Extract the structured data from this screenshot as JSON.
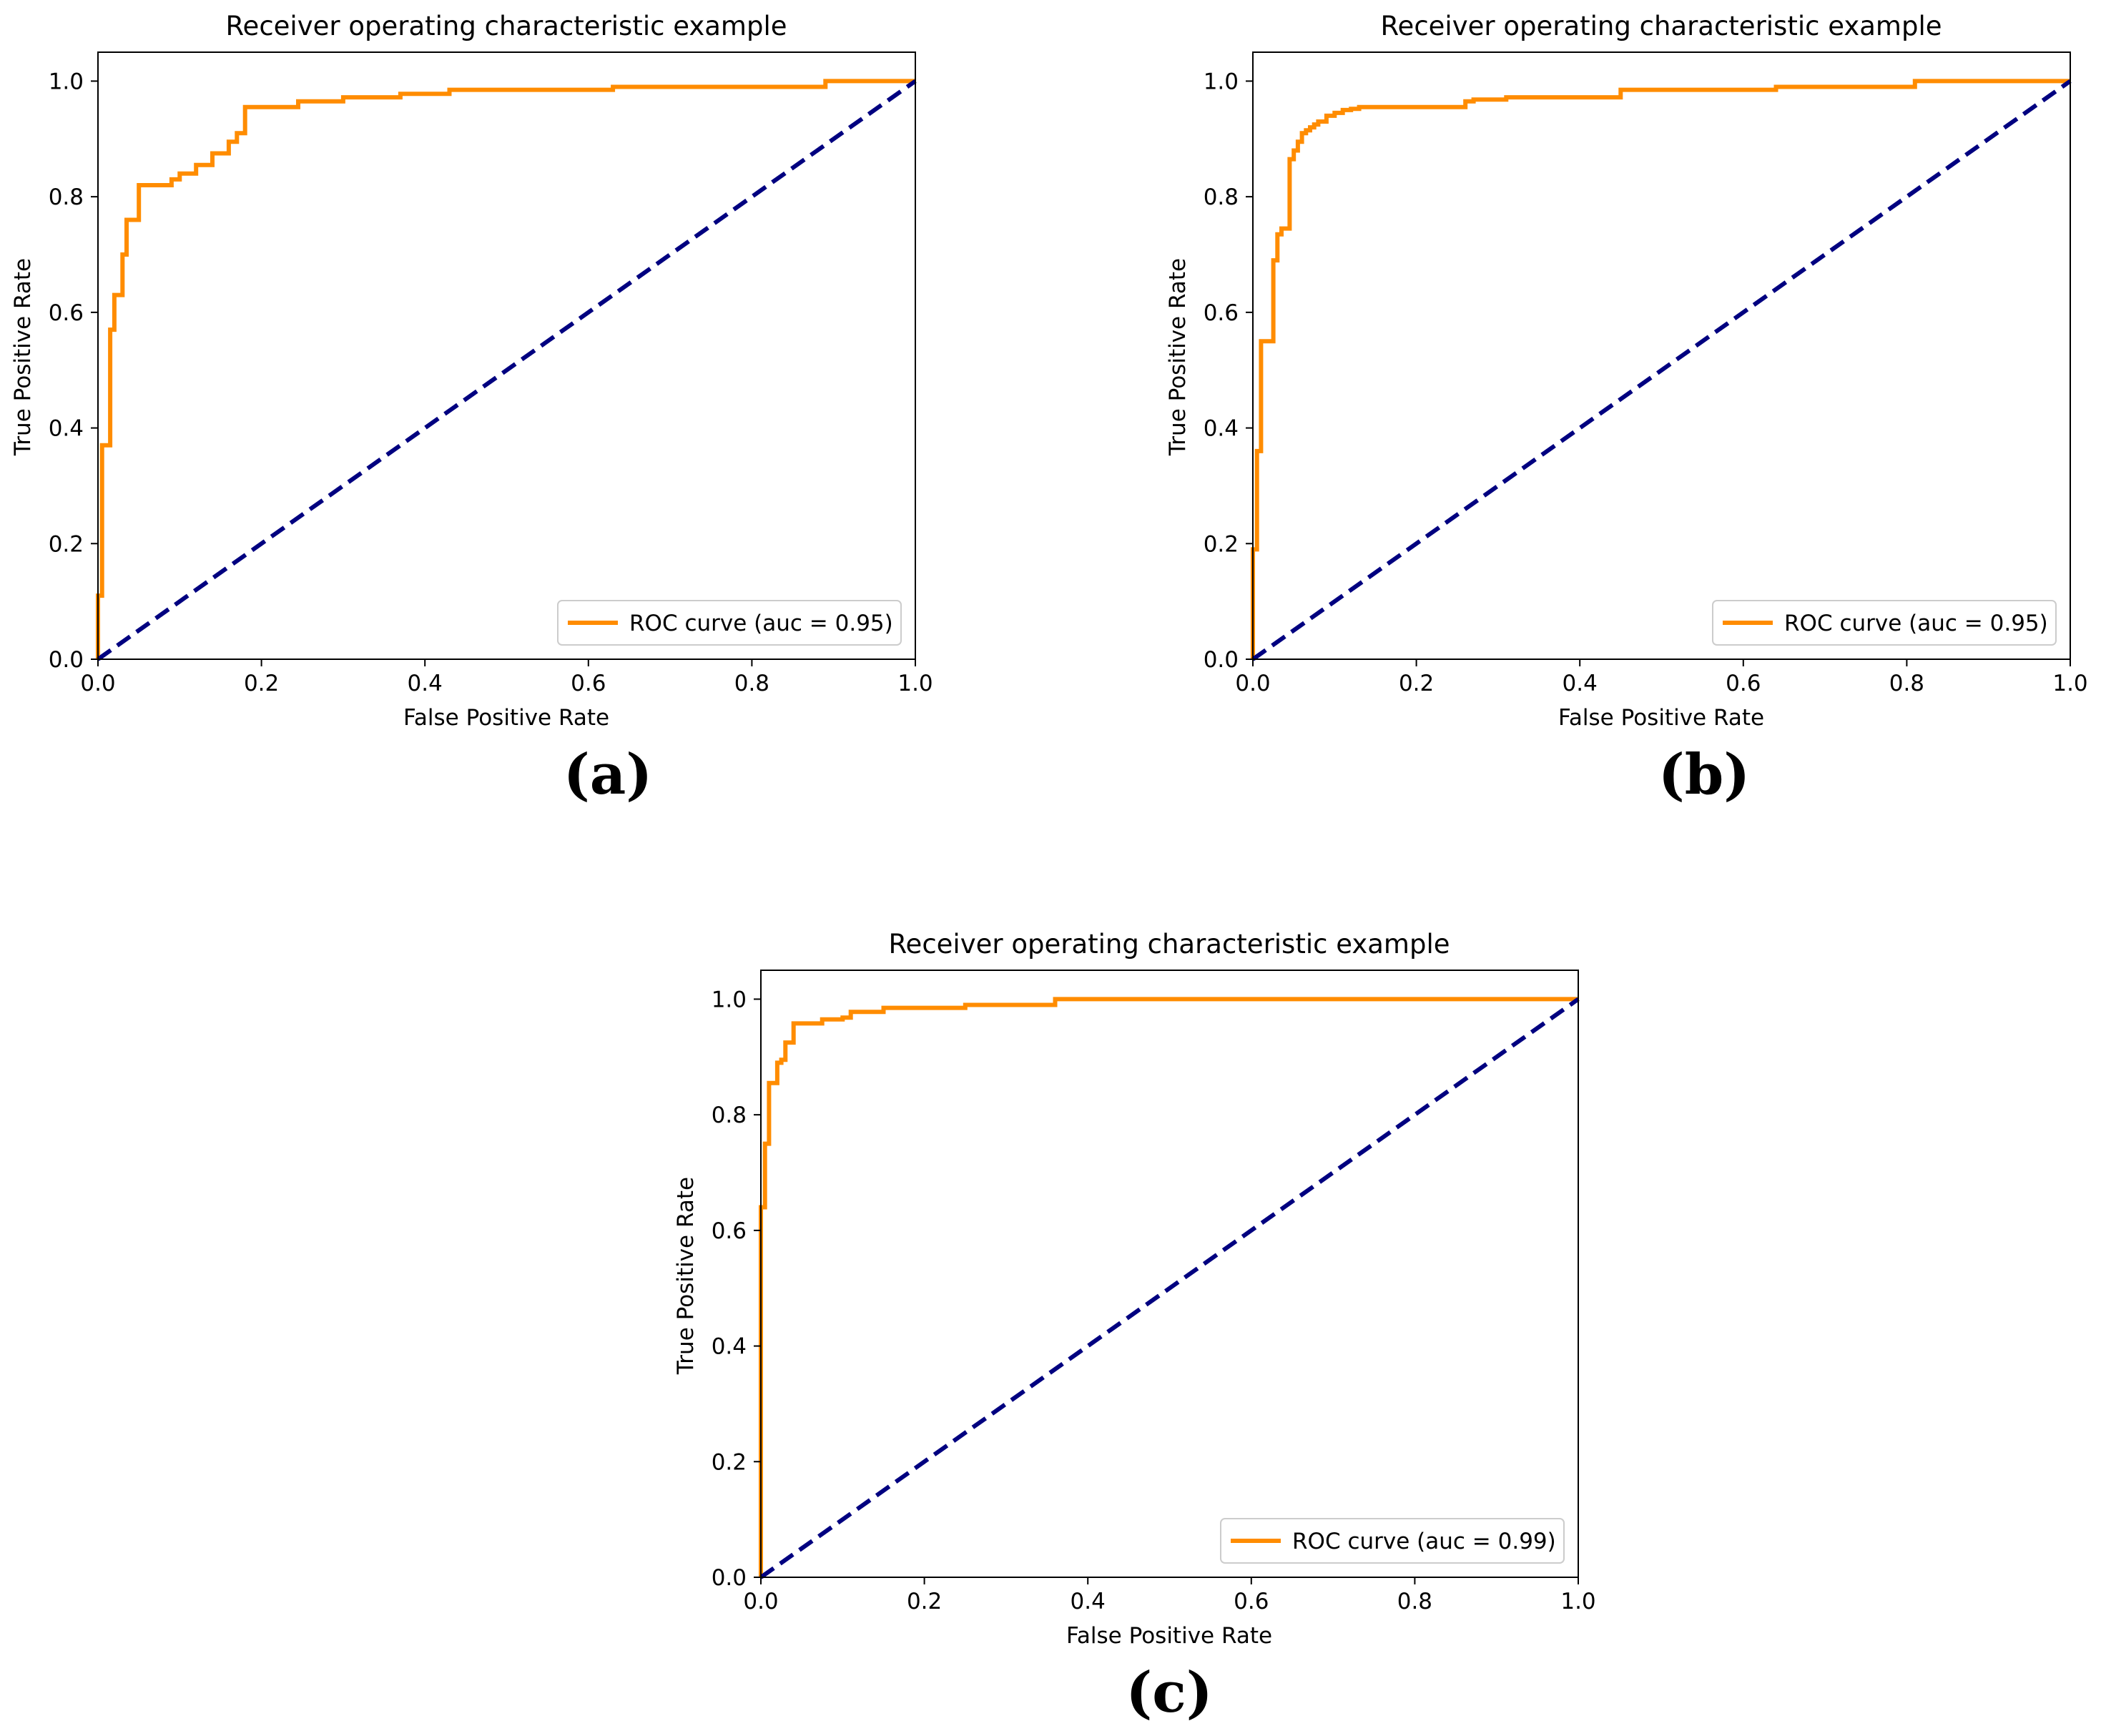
{
  "chart_data": [
    {
      "id": "a",
      "type": "line",
      "title": "Receiver operating characteristic example",
      "xlabel": "False Positive Rate",
      "ylabel": "True Positive Rate",
      "xlim": [
        0.0,
        1.0
      ],
      "ylim": [
        0.0,
        1.05
      ],
      "xticks": [
        "0.0",
        "0.2",
        "0.4",
        "0.6",
        "0.8",
        "1.0"
      ],
      "yticks": [
        "0.0",
        "0.2",
        "0.4",
        "0.6",
        "0.8",
        "1.0"
      ],
      "legend": {
        "label": "ROC curve (auc = 0.95)",
        "placement": "lower-right"
      },
      "panel_label": "(a)",
      "colors": {
        "roc": "#ff8c00",
        "chance": "#000080"
      },
      "series": [
        {
          "name": "ROC curve (auc = 0.95)",
          "x": [
            0,
            0,
            0.005,
            0.005,
            0.015,
            0.015,
            0.02,
            0.02,
            0.03,
            0.03,
            0.035,
            0.035,
            0.05,
            0.05,
            0.09,
            0.09,
            0.1,
            0.1,
            0.12,
            0.12,
            0.14,
            0.14,
            0.16,
            0.16,
            0.17,
            0.17,
            0.18,
            0.18,
            0.245,
            0.245,
            0.3,
            0.3,
            0.37,
            0.37,
            0.43,
            0.43,
            0.63,
            0.63,
            0.89,
            0.89,
            1.0
          ],
          "y": [
            0,
            0.11,
            0.11,
            0.37,
            0.37,
            0.57,
            0.57,
            0.63,
            0.63,
            0.7,
            0.7,
            0.76,
            0.76,
            0.82,
            0.82,
            0.83,
            0.83,
            0.84,
            0.84,
            0.855,
            0.855,
            0.875,
            0.875,
            0.895,
            0.895,
            0.91,
            0.91,
            0.955,
            0.955,
            0.965,
            0.965,
            0.972,
            0.972,
            0.978,
            0.978,
            0.985,
            0.985,
            0.99,
            0.99,
            1.0,
            1.0
          ]
        },
        {
          "name": "chance",
          "x": [
            0,
            1
          ],
          "y": [
            0,
            1
          ]
        }
      ]
    },
    {
      "id": "b",
      "type": "line",
      "title": "Receiver operating characteristic example",
      "xlabel": "False Positive Rate",
      "ylabel": "True Positive Rate",
      "xlim": [
        0.0,
        1.0
      ],
      "ylim": [
        0.0,
        1.05
      ],
      "xticks": [
        "0.0",
        "0.2",
        "0.4",
        "0.6",
        "0.8",
        "1.0"
      ],
      "yticks": [
        "0.0",
        "0.2",
        "0.4",
        "0.6",
        "0.8",
        "1.0"
      ],
      "legend": {
        "label": "ROC curve (auc = 0.95)",
        "placement": "lower-right"
      },
      "panel_label": "(b)",
      "colors": {
        "roc": "#ff8c00",
        "chance": "#000080"
      },
      "series": [
        {
          "name": "ROC curve (auc = 0.95)",
          "x": [
            0,
            0,
            0.005,
            0.005,
            0.01,
            0.01,
            0.015,
            0.015,
            0.025,
            0.025,
            0.03,
            0.03,
            0.035,
            0.035,
            0.045,
            0.045,
            0.05,
            0.05,
            0.055,
            0.055,
            0.06,
            0.06,
            0.065,
            0.065,
            0.07,
            0.07,
            0.075,
            0.075,
            0.08,
            0.08,
            0.09,
            0.09,
            0.1,
            0.1,
            0.11,
            0.11,
            0.12,
            0.12,
            0.13,
            0.13,
            0.26,
            0.26,
            0.27,
            0.27,
            0.31,
            0.31,
            0.45,
            0.45,
            0.64,
            0.64,
            0.81,
            0.81,
            1.0
          ],
          "y": [
            0,
            0.19,
            0.19,
            0.36,
            0.36,
            0.55,
            0.55,
            0.55,
            0.55,
            0.69,
            0.69,
            0.735,
            0.735,
            0.745,
            0.745,
            0.865,
            0.865,
            0.88,
            0.88,
            0.895,
            0.895,
            0.91,
            0.91,
            0.915,
            0.915,
            0.92,
            0.92,
            0.925,
            0.925,
            0.93,
            0.93,
            0.94,
            0.94,
            0.945,
            0.945,
            0.95,
            0.95,
            0.952,
            0.952,
            0.955,
            0.955,
            0.965,
            0.965,
            0.968,
            0.968,
            0.972,
            0.972,
            0.985,
            0.985,
            0.99,
            0.99,
            1.0,
            1.0
          ]
        },
        {
          "name": "chance",
          "x": [
            0,
            1
          ],
          "y": [
            0,
            1
          ]
        }
      ]
    },
    {
      "id": "c",
      "type": "line",
      "title": "Receiver operating characteristic example",
      "xlabel": "False Positive Rate",
      "ylabel": "True Positive Rate",
      "xlim": [
        0.0,
        1.0
      ],
      "ylim": [
        0.0,
        1.05
      ],
      "xticks": [
        "0.0",
        "0.2",
        "0.4",
        "0.6",
        "0.8",
        "1.0"
      ],
      "yticks": [
        "0.0",
        "0.2",
        "0.4",
        "0.6",
        "0.8",
        "1.0"
      ],
      "legend": {
        "label": "ROC curve (auc = 0.99)",
        "placement": "lower-right"
      },
      "panel_label": "(c)",
      "colors": {
        "roc": "#ff8c00",
        "chance": "#000080"
      },
      "series": [
        {
          "name": "ROC curve (auc = 0.99)",
          "x": [
            0,
            0,
            0.005,
            0.005,
            0.01,
            0.01,
            0.015,
            0.015,
            0.02,
            0.02,
            0.025,
            0.025,
            0.03,
            0.03,
            0.035,
            0.035,
            0.04,
            0.04,
            0.075,
            0.075,
            0.1,
            0.1,
            0.11,
            0.11,
            0.15,
            0.15,
            0.25,
            0.25,
            0.36,
            0.36,
            1.0
          ],
          "y": [
            0,
            0.64,
            0.64,
            0.75,
            0.75,
            0.855,
            0.855,
            0.855,
            0.855,
            0.89,
            0.89,
            0.895,
            0.895,
            0.925,
            0.925,
            0.925,
            0.925,
            0.958,
            0.958,
            0.965,
            0.965,
            0.968,
            0.968,
            0.978,
            0.978,
            0.985,
            0.985,
            0.99,
            0.99,
            1.0,
            1.0
          ]
        },
        {
          "name": "chance",
          "x": [
            0,
            1
          ],
          "y": [
            0,
            1
          ]
        }
      ]
    }
  ]
}
